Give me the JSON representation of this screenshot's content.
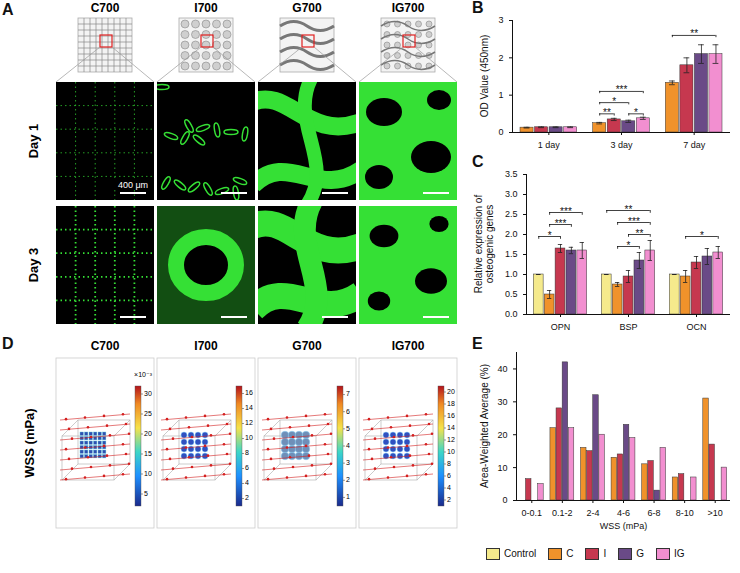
{
  "figure_panels": {
    "A": {
      "panel": "A",
      "columns": [
        "C700",
        "I700",
        "G700",
        "IG700"
      ],
      "rows": [
        "Day 1",
        "Day 3"
      ],
      "scale_bar": "400 μm"
    },
    "D": {
      "panel": "D",
      "label": "WSS (mPa)",
      "columns": [
        {
          "title": "C700",
          "colorbar": {
            "header": "×10⁻³",
            "range": [
              2,
              32
            ],
            "ticks": [
              5,
              10,
              15,
              20,
              25,
              30
            ]
          }
        },
        {
          "title": "I700",
          "colorbar": {
            "range": [
              1,
              17
            ],
            "ticks": [
              2,
              4,
              6,
              8,
              10,
              12,
              14,
              16
            ]
          }
        },
        {
          "title": "G700",
          "colorbar": {
            "range": [
              0.5,
              7.5
            ],
            "ticks": [
              1,
              2,
              3,
              4,
              5,
              6,
              7
            ]
          }
        },
        {
          "title": "IG700",
          "colorbar": {
            "range": [
              1,
              21
            ],
            "ticks": [
              2,
              4,
              6,
              8,
              10,
              12,
              14,
              16,
              18,
              20
            ]
          }
        }
      ]
    }
  },
  "chart_data": [
    {
      "panel": "B",
      "type": "bar",
      "ylabel": "OD Value (450nm)",
      "categories": [
        "1 day",
        "3 day",
        "7 day"
      ],
      "series": [
        {
          "name": "C",
          "color": "#f0922b",
          "values": [
            0.13,
            0.25,
            1.33
          ],
          "errors": [
            0.01,
            0.02,
            0.05
          ]
        },
        {
          "name": "I",
          "color": "#c6384f",
          "values": [
            0.14,
            0.35,
            1.8
          ],
          "errors": [
            0.01,
            0.03,
            0.2
          ]
        },
        {
          "name": "G",
          "color": "#6a4a87",
          "values": [
            0.14,
            0.3,
            2.1
          ],
          "errors": [
            0.01,
            0.03,
            0.25
          ]
        },
        {
          "name": "IG",
          "color": "#f28fd0",
          "values": [
            0.14,
            0.38,
            2.1
          ],
          "errors": [
            0.01,
            0.03,
            0.25
          ]
        }
      ],
      "ylim": [
        0,
        3
      ],
      "yticks": [
        0,
        1,
        2,
        3
      ],
      "annotations": [
        {
          "category": "3 day",
          "from": "C",
          "to": "I",
          "y": 0.5,
          "text": "**"
        },
        {
          "category": "3 day",
          "from": "G",
          "to": "IG",
          "y": 0.5,
          "text": "*"
        },
        {
          "category": "3 day",
          "from": "C",
          "to": "G",
          "y": 0.8,
          "text": "*"
        },
        {
          "category": "3 day",
          "from": "C",
          "to": "IG",
          "y": 1.1,
          "text": "***"
        },
        {
          "category": "7 day",
          "from": "C",
          "to": "IG",
          "y": 2.6,
          "text": "**"
        }
      ]
    },
    {
      "panel": "C",
      "type": "bar",
      "ylabel": "Relative expression of osteogenic genes",
      "categories": [
        "OPN",
        "BSP",
        "OCN"
      ],
      "series": [
        {
          "name": "Control",
          "color": "#f5ea8c",
          "values": [
            1.0,
            1.0,
            1.0
          ],
          "errors": [
            0,
            0,
            0
          ]
        },
        {
          "name": "C",
          "color": "#f0922b",
          "values": [
            0.5,
            0.75,
            0.95
          ],
          "errors": [
            0.1,
            0.05,
            0.15
          ]
        },
        {
          "name": "I",
          "color": "#c6384f",
          "values": [
            1.65,
            0.95,
            1.3
          ],
          "errors": [
            0.1,
            0.15,
            0.15
          ]
        },
        {
          "name": "G",
          "color": "#6a4a87",
          "values": [
            1.6,
            1.35,
            1.45
          ],
          "errors": [
            0.08,
            0.2,
            0.2
          ]
        },
        {
          "name": "IG",
          "color": "#f28fd0",
          "values": [
            1.6,
            1.6,
            1.55
          ],
          "errors": [
            0.2,
            0.25,
            0.15
          ]
        }
      ],
      "ylim": [
        0,
        3.5
      ],
      "yticks": [
        {
          "value": 0,
          "label": "0.0"
        },
        {
          "value": 0.5,
          "label": "0.5"
        },
        {
          "value": 1,
          "label": "1.0"
        },
        {
          "value": 1.5,
          "label": "1.5"
        },
        {
          "value": 2,
          "label": "2.0"
        },
        {
          "value": 2.5,
          "label": "2.5"
        },
        {
          "value": 3,
          "label": "3.0"
        },
        {
          "value": 3.5,
          "label": "3.5"
        }
      ],
      "legend": "bottom",
      "annotations": [
        {
          "category": "OPN",
          "from": "Control",
          "to": "I",
          "y": 1.95,
          "text": "*"
        },
        {
          "category": "OPN",
          "from": "C",
          "to": "G",
          "y": 2.25,
          "text": "***"
        },
        {
          "category": "OPN",
          "from": "C",
          "to": "IG",
          "y": 2.55,
          "text": "***"
        },
        {
          "category": "BSP",
          "from": "C",
          "to": "G",
          "y": 1.7,
          "text": "*"
        },
        {
          "category": "BSP",
          "from": "I",
          "to": "IG",
          "y": 2.0,
          "text": "**"
        },
        {
          "category": "BSP",
          "from": "C",
          "to": "IG",
          "y": 2.3,
          "text": "***"
        },
        {
          "category": "BSP",
          "from": "Control",
          "to": "IG",
          "y": 2.6,
          "text": "**"
        },
        {
          "category": "OCN",
          "from": "C",
          "to": "IG",
          "y": 1.95,
          "text": "*"
        }
      ]
    },
    {
      "panel": "E",
      "type": "bar",
      "ylabel": "Area-Weighted Average (%)",
      "xlabel": "WSS (mPa)",
      "categories": [
        "0-0.1",
        "0.1-2",
        "2-4",
        "4-6",
        "6-8",
        "8-10",
        ">10"
      ],
      "series": [
        {
          "name": "C",
          "color": "#f0922b",
          "values": [
            0,
            22,
            16,
            13,
            11,
            7,
            31
          ]
        },
        {
          "name": "I",
          "color": "#c6384f",
          "values": [
            6.5,
            28,
            15,
            14,
            12,
            8,
            17
          ]
        },
        {
          "name": "G",
          "color": "#6a4a87",
          "values": [
            0,
            42,
            32,
            23,
            3,
            0,
            0
          ]
        },
        {
          "name": "IG",
          "color": "#f28fd0",
          "values": [
            5,
            22,
            20,
            19,
            16,
            7,
            10
          ]
        }
      ],
      "ylim": [
        0,
        45
      ],
      "yticks": [
        0,
        10,
        20,
        30,
        40
      ]
    }
  ]
}
